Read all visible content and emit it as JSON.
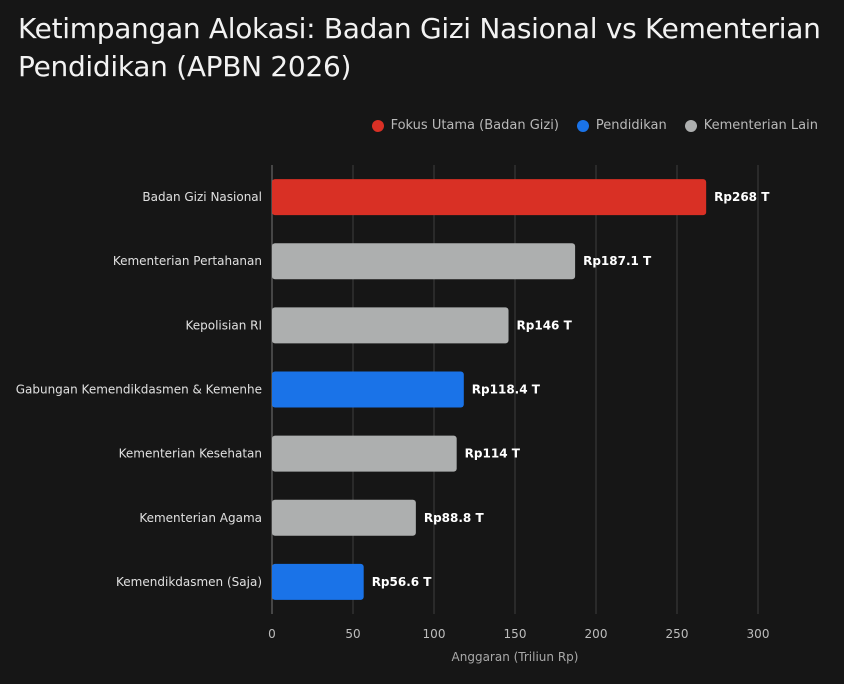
{
  "title": "Ketimpangan Alokasi: Badan Gizi Nasional vs Kementerian Pendidikan (APBN 2026)",
  "legend": [
    {
      "label": "Fokus Utama (Badan Gizi)",
      "color": "#d93025"
    },
    {
      "label": "Pendidikan",
      "color": "#1a73e8"
    },
    {
      "label": "Kementerian Lain",
      "color": "#adafaf"
    }
  ],
  "chart_data": {
    "type": "bar",
    "orientation": "horizontal",
    "categories": [
      "Badan Gizi Nasional",
      "Kementerian Pertahanan",
      "Kepolisian RI",
      "Gabungan Kemendikdasmen & Kemenhe",
      "Kementerian Kesehatan",
      "Kementerian Agama",
      "Kemendikdasmen (Saja)"
    ],
    "values": [
      268,
      187.1,
      146,
      118.4,
      114,
      88.8,
      56.6
    ],
    "value_labels": [
      "Rp268 T",
      "Rp187.1 T",
      "Rp146 T",
      "Rp118.4 T",
      "Rp114 T",
      "Rp88.8 T",
      "Rp56.6 T"
    ],
    "groups": [
      "Fokus Utama (Badan Gizi)",
      "Kementerian Lain",
      "Kementerian Lain",
      "Pendidikan",
      "Kementerian Lain",
      "Kementerian Lain",
      "Pendidikan"
    ],
    "xlabel": "Anggaran (Triliun Rp)",
    "ylabel": "",
    "xlim": [
      0,
      300
    ],
    "xticks": [
      0,
      50,
      100,
      150,
      200,
      250,
      300
    ],
    "grid": "vertical",
    "legend_position": "top-right"
  }
}
